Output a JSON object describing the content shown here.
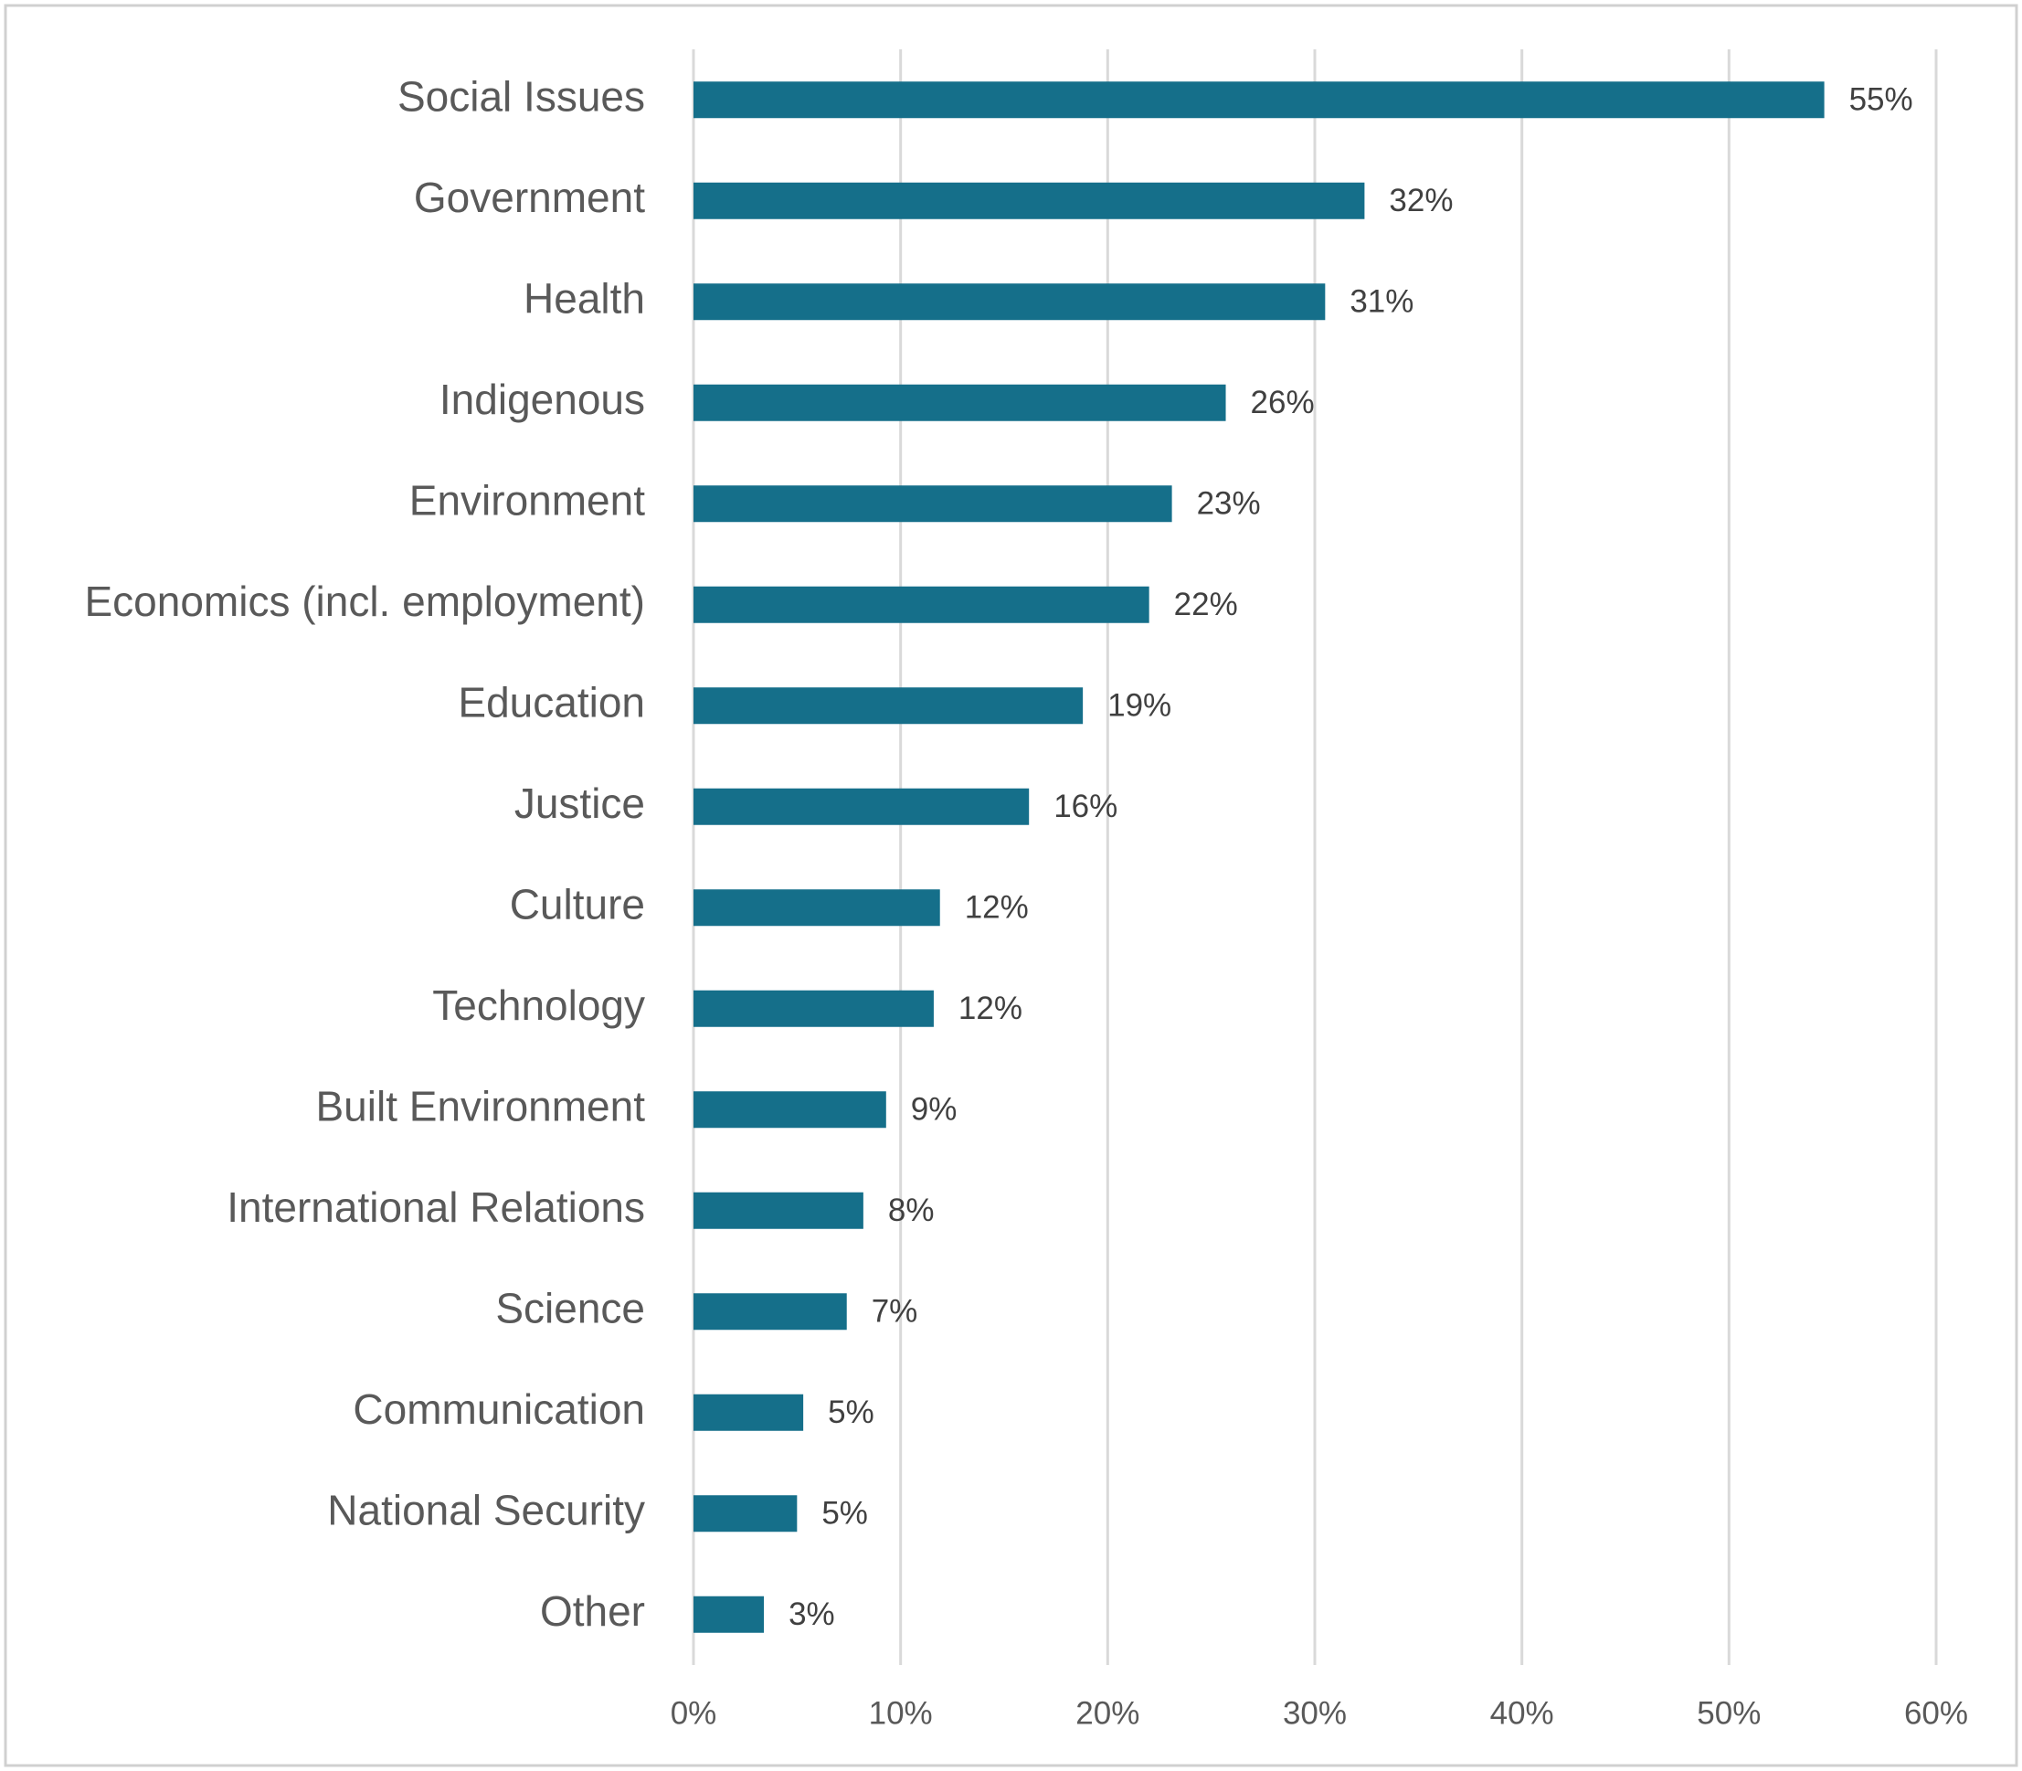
{
  "chart_data": {
    "type": "bar",
    "orientation": "horizontal",
    "categories": [
      "Social Issues",
      "Government",
      "Health",
      "Indigenous",
      "Environment",
      "Economics (incl. employment)",
      "Education",
      "Justice",
      "Culture",
      "Technology",
      "Built Environment",
      "International Relations",
      "Science",
      "Communication",
      "National Security",
      "Other"
    ],
    "values": [
      54.6,
      32.4,
      30.5,
      25.7,
      23.1,
      22.0,
      18.8,
      16.2,
      11.9,
      11.6,
      9.3,
      8.2,
      7.4,
      5.3,
      5.0,
      3.4
    ],
    "value_labels": [
      "55%",
      "32%",
      "31%",
      "26%",
      "23%",
      "22%",
      "19%",
      "16%",
      "12%",
      "12%",
      "9%",
      "8%",
      "7%",
      "5%",
      "5%",
      "3%"
    ],
    "color": "#156f8a",
    "xlim": [
      0,
      60
    ],
    "xticks": [
      {
        "value": 0,
        "label": "0%"
      },
      {
        "value": 10,
        "label": "10%"
      },
      {
        "value": 20,
        "label": "20%"
      },
      {
        "value": 30,
        "label": "30%"
      },
      {
        "value": 40,
        "label": "40%"
      },
      {
        "value": 50,
        "label": "50%"
      },
      {
        "value": 60,
        "label": "60%"
      }
    ],
    "grid": true
  }
}
